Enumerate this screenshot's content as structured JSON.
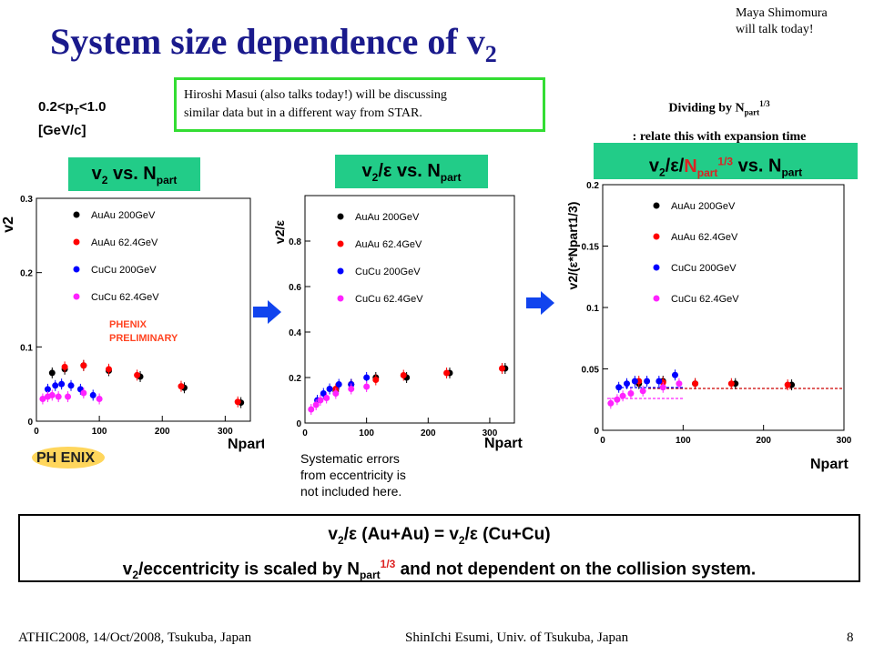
{
  "title": {
    "main": "System size dependence of v",
    "sub": "2"
  },
  "top_note": {
    "line1": "Maya Shimomura",
    "line2": "will talk today!"
  },
  "masui_note": {
    "line1": "Hiroshi Masui (also talks today!) will be discussing",
    "line2": "similar data but in a different way from STAR."
  },
  "pt_range": {
    "line1a": "0.2<p",
    "line1sub": "T",
    "line1b": "<1.0",
    "line2": "[GeV/c]"
  },
  "dividing_note": {
    "line1a": "Dividing by N",
    "line1sub": "part",
    "line1sup": "1/3",
    "line2": ": relate this with expansion time"
  },
  "headers": {
    "h1": {
      "a": "v",
      "asub": "2",
      "b": " vs. N",
      "bsub": "part"
    },
    "h2": {
      "a": "v",
      "asub": "2",
      "b": "/ε vs. N",
      "bsub": "part"
    },
    "h3": {
      "a": "v",
      "asub": "2",
      "b": "/ε/",
      "c": "N",
      "csub": "part",
      "csup": "1/3",
      "d": " vs. N",
      "dsub": "part"
    }
  },
  "legend": [
    "AuAu 200GeV",
    "AuAu 62.4GeV",
    "CuCu 200GeV",
    "CuCu 62.4GeV"
  ],
  "colors": {
    "auau200": "#000000",
    "auau62": "#ff0000",
    "cucu200": "#0000ff",
    "cucu62": "#ff22ff",
    "green": "#22cc88",
    "arrow": "#1144ee",
    "title": "#1a1a8c"
  },
  "preliminary": {
    "line1": "PHENIX",
    "line2": "PRELIMINARY"
  },
  "logo_text": "PH ENIX",
  "systematic_note": {
    "line1": "Systematic errors",
    "line2": "from eccentricity is",
    "line3": "not included here."
  },
  "conclusion": {
    "line1a": "v",
    "line1sub": "2",
    "line1b": "/ε (Au+Au) = v",
    "line1sub2": "2",
    "line1c": "/ε (Cu+Cu)",
    "line2a": "v",
    "line2sub": "2",
    "line2b": "/eccentricity  is scaled by N",
    "line2sub2": "part",
    "line2sup": "1/3",
    "line2c": " and not dependent on the collision system."
  },
  "footer": {
    "left": "ATHIC2008, 14/Oct/2008, Tsukuba, Japan",
    "center": "ShinIchi Esumi, Univ. of Tsukuba, Japan",
    "page": "8"
  },
  "chart_data": [
    {
      "type": "scatter",
      "ylabel": "v2",
      "xlabel": "Npart",
      "xlim": [
        0,
        340
      ],
      "ylim": [
        0,
        0.3
      ],
      "xticks": [
        "0",
        "100",
        "200",
        "300"
      ],
      "yticks": [
        "0",
        "0.1",
        "0.2",
        "0.3"
      ],
      "series": [
        {
          "name": "AuAu 200GeV",
          "x": [
            25,
            45,
            75,
            115,
            165,
            235,
            325
          ],
          "y": [
            0.065,
            0.07,
            0.075,
            0.068,
            0.06,
            0.045,
            0.025
          ]
        },
        {
          "name": "AuAu 62.4GeV",
          "x": [
            45,
            75,
            115,
            160,
            230,
            320
          ],
          "y": [
            0.073,
            0.075,
            0.07,
            0.062,
            0.047,
            0.026
          ]
        },
        {
          "name": "CuCu 200GeV",
          "x": [
            18,
            30,
            40,
            55,
            70,
            90
          ],
          "y": [
            0.043,
            0.048,
            0.05,
            0.048,
            0.043,
            0.035
          ]
        },
        {
          "name": "CuCu 62.4GeV",
          "x": [
            10,
            18,
            25,
            35,
            50,
            75,
            100
          ],
          "y": [
            0.03,
            0.033,
            0.035,
            0.033,
            0.033,
            0.038,
            0.03
          ]
        }
      ]
    },
    {
      "type": "scatter",
      "ylabel": "v2/ε",
      "xlabel": "Npart",
      "xlim": [
        0,
        340
      ],
      "ylim": [
        0,
        1.0
      ],
      "xticks": [
        "0",
        "100",
        "200",
        "300"
      ],
      "yticks": [
        "0",
        "0.2",
        "0.4",
        "0.6",
        "0.8"
      ],
      "series": [
        {
          "name": "AuAu 200GeV",
          "x": [
            50,
            75,
            115,
            165,
            235,
            325
          ],
          "y": [
            0.14,
            0.17,
            0.2,
            0.2,
            0.22,
            0.24
          ]
        },
        {
          "name": "AuAu 62.4GeV",
          "x": [
            50,
            75,
            115,
            160,
            230,
            320
          ],
          "y": [
            0.15,
            0.17,
            0.19,
            0.21,
            0.22,
            0.24
          ]
        },
        {
          "name": "CuCu 200GeV",
          "x": [
            20,
            30,
            40,
            55,
            75,
            100
          ],
          "y": [
            0.1,
            0.13,
            0.15,
            0.17,
            0.17,
            0.2
          ]
        },
        {
          "name": "CuCu 62.4GeV",
          "x": [
            10,
            18,
            25,
            35,
            50,
            75,
            100
          ],
          "y": [
            0.06,
            0.08,
            0.1,
            0.11,
            0.13,
            0.15,
            0.16
          ]
        }
      ]
    },
    {
      "type": "scatter",
      "ylabel": "v2/(ε*Npart1/3)",
      "xlabel": "Npart",
      "xlim": [
        0,
        300
      ],
      "ylim": [
        0,
        0.2
      ],
      "xticks": [
        "0",
        "100",
        "200",
        "300"
      ],
      "yticks": [
        "0",
        "0.05",
        "0.1",
        "0.15",
        "0.2"
      ],
      "series": [
        {
          "name": "AuAu 200GeV",
          "x": [
            45,
            75,
            115,
            165,
            235
          ],
          "y": [
            0.038,
            0.04,
            0.038,
            0.038,
            0.037
          ]
        },
        {
          "name": "AuAu 62.4GeV",
          "x": [
            45,
            75,
            115,
            160,
            230
          ],
          "y": [
            0.04,
            0.039,
            0.038,
            0.038,
            0.037
          ]
        },
        {
          "name": "CuCu 200GeV",
          "x": [
            20,
            30,
            40,
            55,
            70,
            90
          ],
          "y": [
            0.035,
            0.038,
            0.04,
            0.04,
            0.04,
            0.045
          ]
        },
        {
          "name": "CuCu 62.4GeV",
          "x": [
            10,
            18,
            25,
            35,
            50,
            75,
            95
          ],
          "y": [
            0.022,
            0.025,
            0.028,
            0.03,
            0.032,
            0.035,
            0.038
          ]
        }
      ]
    }
  ]
}
